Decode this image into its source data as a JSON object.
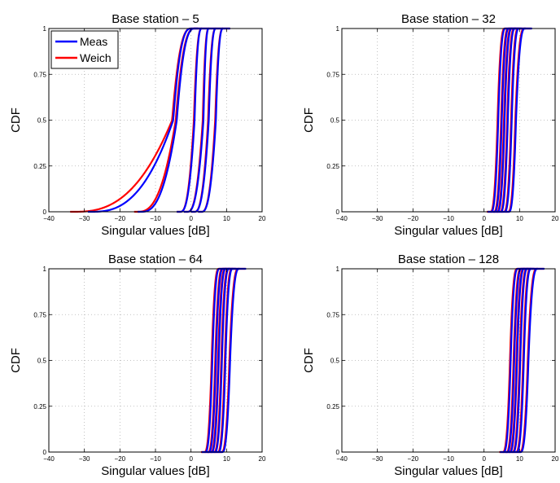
{
  "chart_data": [
    {
      "type": "line",
      "title": "Base station – 5",
      "xlabel": "Singular values [dB]",
      "ylabel": "CDF",
      "xlim": [
        -40,
        20
      ],
      "ylim": [
        0,
        1
      ],
      "xticks": [
        "−40",
        "−30",
        "−20",
        "−10",
        "0",
        "10",
        "20"
      ],
      "yticks": [
        "0",
        "0.25",
        "0.5",
        "0.75",
        "1"
      ],
      "grid": true,
      "legend": {
        "position": "top-left",
        "entries": [
          "Meas",
          "Weich"
        ]
      },
      "series": [
        {
          "name": "Meas",
          "color": "#0000ff",
          "curves": [
            {
              "median": -5.0,
              "lo": -28,
              "hi": 0
            },
            {
              "median": -4.0,
              "lo": -14,
              "hi": 1
            },
            {
              "median": 1.0,
              "lo": -3,
              "hi": 3
            },
            {
              "median": 3.5,
              "lo": -1,
              "hi": 5
            },
            {
              "median": 5.0,
              "lo": 1,
              "hi": 7
            },
            {
              "median": 7.0,
              "lo": 3,
              "hi": 9
            }
          ]
        },
        {
          "name": "Weich",
          "color": "#ff0000",
          "curves": [
            {
              "median": -5.3,
              "lo": -33,
              "hi": 0
            },
            {
              "median": -4.3,
              "lo": -15,
              "hi": 1
            },
            {
              "median": 0.8,
              "lo": -3,
              "hi": 3
            },
            {
              "median": 3.3,
              "lo": -1,
              "hi": 5
            },
            {
              "median": 4.8,
              "lo": 1,
              "hi": 7
            },
            {
              "median": 6.8,
              "lo": 3,
              "hi": 9
            }
          ]
        }
      ]
    },
    {
      "type": "line",
      "title": "Base station – 32",
      "xlabel": "Singular values [dB]",
      "ylabel": "CDF",
      "xlim": [
        -40,
        20
      ],
      "ylim": [
        0,
        1
      ],
      "xticks": [
        "−40",
        "−30",
        "−20",
        "−10",
        "0",
        "10",
        "20"
      ],
      "yticks": [
        "0",
        "0.25",
        "0.5",
        "0.75",
        "1"
      ],
      "grid": true,
      "series": [
        {
          "name": "Meas",
          "color": "#0000ff",
          "curves": [
            {
              "median": 4.0,
              "lo": 2,
              "hi": 6
            },
            {
              "median": 5.0,
              "lo": 3,
              "hi": 7
            },
            {
              "median": 5.8,
              "lo": 3.8,
              "hi": 7.8
            },
            {
              "median": 6.7,
              "lo": 4.7,
              "hi": 8.7
            },
            {
              "median": 7.8,
              "lo": 5.8,
              "hi": 9.8
            },
            {
              "median": 9.0,
              "lo": 7,
              "hi": 11.5
            }
          ]
        },
        {
          "name": "Weich",
          "color": "#ff0000",
          "curves": [
            {
              "median": 3.8,
              "lo": 1.8,
              "hi": 5.8
            },
            {
              "median": 4.8,
              "lo": 2.8,
              "hi": 6.8
            },
            {
              "median": 5.6,
              "lo": 3.6,
              "hi": 7.6
            },
            {
              "median": 6.5,
              "lo": 4.5,
              "hi": 8.5
            },
            {
              "median": 7.6,
              "lo": 5.6,
              "hi": 9.6
            },
            {
              "median": 8.8,
              "lo": 6.8,
              "hi": 11.3
            }
          ]
        }
      ]
    },
    {
      "type": "line",
      "title": "Base station – 64",
      "xlabel": "Singular values [dB]",
      "ylabel": "CDF",
      "xlim": [
        -40,
        20
      ],
      "ylim": [
        0,
        1
      ],
      "xticks": [
        "−40",
        "−30",
        "−20",
        "−10",
        "0",
        "10",
        "20"
      ],
      "yticks": [
        "0",
        "0.25",
        "0.5",
        "0.75",
        "1"
      ],
      "grid": true,
      "series": [
        {
          "name": "Meas",
          "color": "#0000ff",
          "curves": [
            {
              "median": 6.0,
              "lo": 4,
              "hi": 8
            },
            {
              "median": 7.0,
              "lo": 5,
              "hi": 9
            },
            {
              "median": 7.8,
              "lo": 5.8,
              "hi": 9.8
            },
            {
              "median": 8.7,
              "lo": 6.7,
              "hi": 10.7
            },
            {
              "median": 9.7,
              "lo": 7.7,
              "hi": 11.7
            },
            {
              "median": 11.0,
              "lo": 8.8,
              "hi": 13.5
            }
          ]
        },
        {
          "name": "Weich",
          "color": "#ff0000",
          "curves": [
            {
              "median": 5.8,
              "lo": 3.8,
              "hi": 7.8
            },
            {
              "median": 6.8,
              "lo": 4.8,
              "hi": 8.8
            },
            {
              "median": 7.6,
              "lo": 5.6,
              "hi": 9.6
            },
            {
              "median": 8.5,
              "lo": 6.5,
              "hi": 10.5
            },
            {
              "median": 9.5,
              "lo": 7.5,
              "hi": 11.5
            },
            {
              "median": 10.8,
              "lo": 8.6,
              "hi": 13.3
            }
          ]
        }
      ]
    },
    {
      "type": "line",
      "title": "Base station – 128",
      "xlabel": "Singular values [dB]",
      "ylabel": "CDF",
      "xlim": [
        -40,
        20
      ],
      "ylim": [
        0,
        1
      ],
      "xticks": [
        "−40",
        "−30",
        "−20",
        "−10",
        "0",
        "10",
        "20"
      ],
      "yticks": [
        "0",
        "0.25",
        "0.5",
        "0.75",
        "1"
      ],
      "grid": true,
      "series": [
        {
          "name": "Meas",
          "color": "#0000ff",
          "curves": [
            {
              "median": 7.5,
              "lo": 5.5,
              "hi": 9.5
            },
            {
              "median": 8.5,
              "lo": 6.5,
              "hi": 10.5
            },
            {
              "median": 9.3,
              "lo": 7.3,
              "hi": 11.3
            },
            {
              "median": 10.2,
              "lo": 8.2,
              "hi": 12.2
            },
            {
              "median": 11.2,
              "lo": 9.2,
              "hi": 13.2
            },
            {
              "median": 12.5,
              "lo": 10.3,
              "hi": 15
            }
          ]
        },
        {
          "name": "Weich",
          "color": "#ff0000",
          "curves": [
            {
              "median": 7.3,
              "lo": 5.3,
              "hi": 9.3
            },
            {
              "median": 8.3,
              "lo": 6.3,
              "hi": 10.3
            },
            {
              "median": 9.1,
              "lo": 7.1,
              "hi": 11.1
            },
            {
              "median": 10.0,
              "lo": 8,
              "hi": 12
            },
            {
              "median": 11.0,
              "lo": 9,
              "hi": 13
            },
            {
              "median": 12.3,
              "lo": 10.1,
              "hi": 14.8
            }
          ]
        }
      ]
    }
  ]
}
